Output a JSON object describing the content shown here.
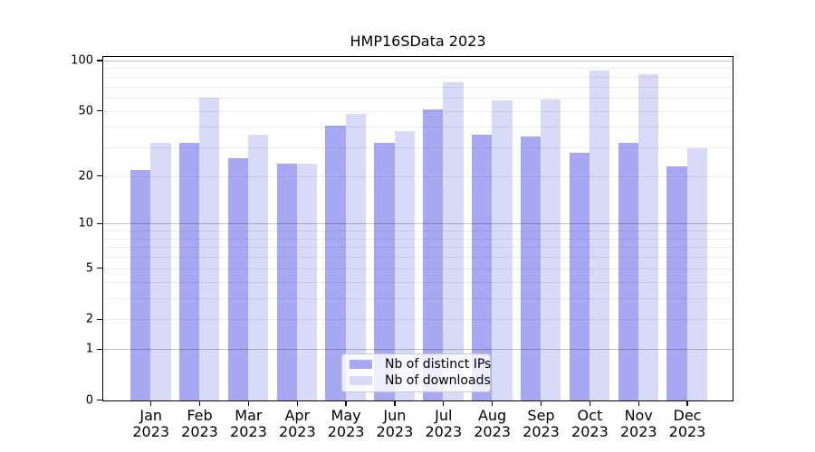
{
  "chart_data": {
    "type": "bar",
    "title": "HMP16SData 2023",
    "y_scale": "log1p",
    "categories": [
      "Jan",
      "Feb",
      "Mar",
      "Apr",
      "May",
      "Jun",
      "Jul",
      "Aug",
      "Sep",
      "Oct",
      "Nov",
      "Dec"
    ],
    "category_year_line": "2023",
    "series": [
      {
        "name": "Nb of distinct IPs",
        "color": "#a7a7f2",
        "values": [
          22,
          32,
          26,
          24,
          41,
          32,
          51,
          36,
          35,
          28,
          32,
          23
        ]
      },
      {
        "name": "Nb of downloads",
        "color": "#d9d9f8",
        "values": [
          32,
          60,
          36,
          24,
          48,
          38,
          75,
          58,
          59,
          88,
          83,
          30
        ]
      }
    ],
    "yticks": [
      0,
      1,
      2,
      5,
      10,
      20,
      50,
      100
    ],
    "ylim": [
      0,
      107
    ],
    "gridlines": {
      "major": [
        1,
        10,
        100
      ],
      "minor": [
        2,
        3,
        4,
        5,
        6,
        7,
        8,
        9,
        20,
        30,
        40,
        50,
        60,
        70,
        80,
        90
      ]
    },
    "legend_position": "inside-bottom-center",
    "grid": "on"
  },
  "colors": {
    "bar_distinct_ips": "#a7a7f2",
    "bar_downloads": "#d9d9f8",
    "axis": "#000000",
    "grid_major": "#bdbdbd",
    "grid_minor": "#ededed",
    "background": "#ffffff"
  }
}
